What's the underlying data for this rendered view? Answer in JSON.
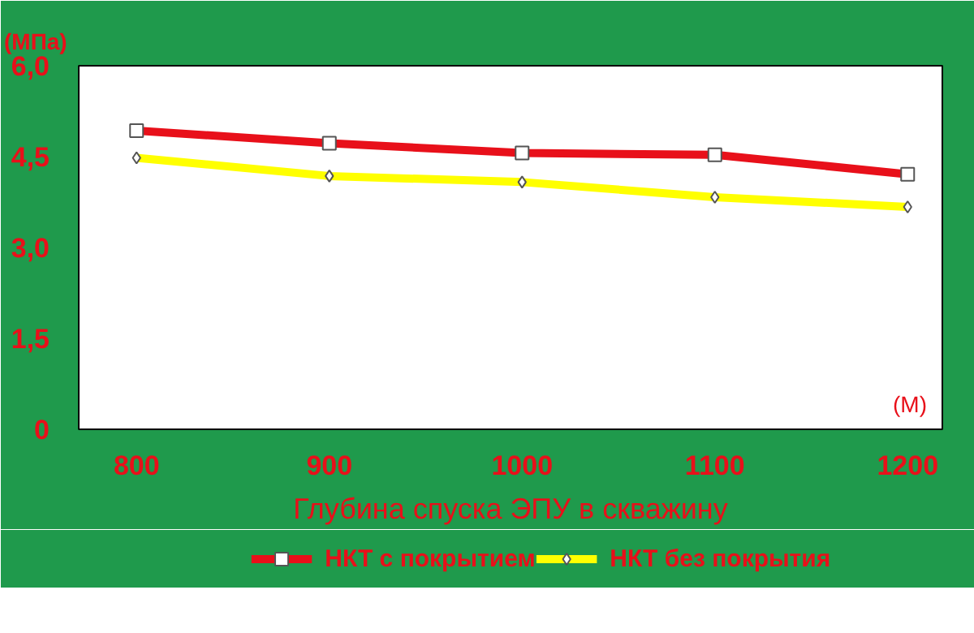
{
  "chart_data": {
    "type": "line",
    "ylabel": "(МПа)",
    "xlabel": "Глубина спуска ЭПУ в скважину",
    "annotations": [
      "(М)"
    ],
    "categories": [
      "800",
      "900",
      "1000",
      "1100",
      "1200"
    ],
    "series": [
      {
        "name": "НКТ с покрытием",
        "color": "#e8101a",
        "marker": "square",
        "values": [
          4.93,
          4.72,
          4.56,
          4.53,
          4.21
        ]
      },
      {
        "name": "НКТ без покрытия",
        "color": "#ffff00",
        "marker": "diamond",
        "values": [
          4.48,
          4.18,
          4.08,
          3.83,
          3.67
        ]
      }
    ],
    "ylim": [
      0,
      6
    ],
    "yticks": [
      0,
      {
        "value": 1.5,
        "label": "1,5"
      },
      {
        "value": 3,
        "label": "3,0"
      },
      {
        "value": 4.5,
        "label": "4,5"
      },
      {
        "value": 6,
        "label": "6,0"
      }
    ],
    "grid": false,
    "legend": "bottom",
    "line_style": "solid"
  }
}
